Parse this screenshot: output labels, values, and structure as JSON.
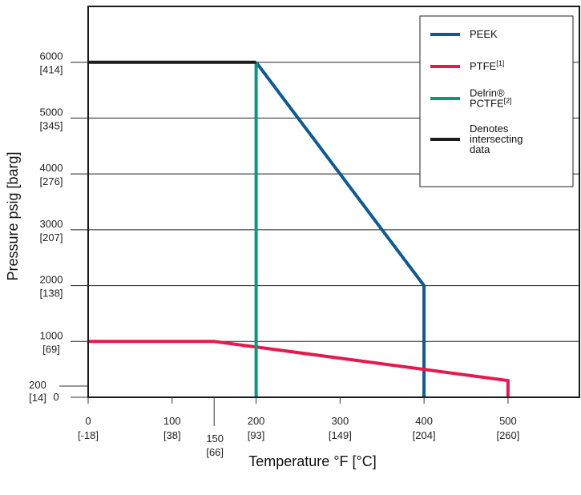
{
  "chart_data": {
    "type": "line",
    "xlabel": "Temperature °F [°C]",
    "ylabel": "Pressure psig [barg]",
    "xlim": [
      0,
      585
    ],
    "ylim": [
      0,
      7000
    ],
    "grid": "horizontal",
    "legend_position": "top-right",
    "x_ticks": [
      {
        "value": 0,
        "f": "0",
        "c": "[-18]"
      },
      {
        "value": 100,
        "f": "100",
        "c": "[38]"
      },
      {
        "value": 150,
        "f": "150",
        "c": "[66]"
      },
      {
        "value": 200,
        "f": "200",
        "c": "[93]"
      },
      {
        "value": 300,
        "f": "300",
        "c": "[149]"
      },
      {
        "value": 400,
        "f": "400",
        "c": "[204]"
      },
      {
        "value": 500,
        "f": "500",
        "c": "[260]"
      }
    ],
    "y_ticks": [
      {
        "value": 0,
        "psi": "0",
        "bar": ""
      },
      {
        "value": 200,
        "psi": "200",
        "bar": "[14]"
      },
      {
        "value": 1000,
        "psi": "1000",
        "bar": "[69]"
      },
      {
        "value": 2000,
        "psi": "2000",
        "bar": "[138]"
      },
      {
        "value": 3000,
        "psi": "3000",
        "bar": "[207]"
      },
      {
        "value": 4000,
        "psi": "4000",
        "bar": "[276]"
      },
      {
        "value": 5000,
        "psi": "5000",
        "bar": "[345]"
      },
      {
        "value": 6000,
        "psi": "6000",
        "bar": "[414]"
      }
    ],
    "series": [
      {
        "name": "PEEK",
        "sup": "",
        "color": "#0d5a96",
        "points": [
          [
            200,
            6000
          ],
          [
            400,
            2000
          ],
          [
            400,
            0
          ]
        ]
      },
      {
        "name": "PTFE",
        "sup": "[1]",
        "color": "#e6194e",
        "points": [
          [
            0,
            1000
          ],
          [
            150,
            1000
          ],
          [
            500,
            300
          ],
          [
            500,
            0
          ]
        ]
      },
      {
        "name": "Delrin® PCTFE",
        "sup": "[2]",
        "color": "#0a9a78",
        "points": [
          [
            200,
            6000
          ],
          [
            200,
            0
          ]
        ]
      },
      {
        "name": "Denotes intersecting data",
        "sup": "",
        "color": "#1c1c1c",
        "points": [
          [
            0,
            6000
          ],
          [
            200,
            6000
          ]
        ]
      }
    ],
    "legend": [
      {
        "lines": [
          "PEEK"
        ],
        "sup": "",
        "color": "#0d5a96"
      },
      {
        "lines": [
          "PTFE"
        ],
        "sup": "[1]",
        "color": "#e6194e"
      },
      {
        "lines": [
          "Delrin®",
          "PCTFE"
        ],
        "sup": "[2]",
        "color": "#0a9a78"
      },
      {
        "lines": [
          "Denotes",
          "intersecting",
          "data"
        ],
        "sup": "",
        "color": "#1c1c1c"
      }
    ]
  }
}
